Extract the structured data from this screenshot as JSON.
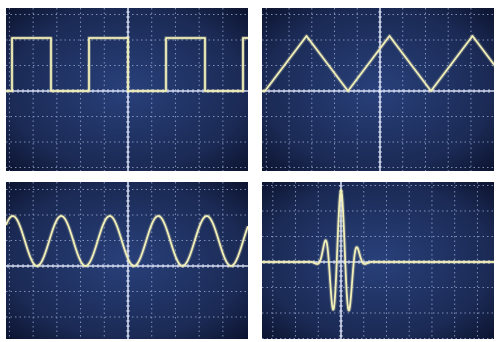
{
  "screen": {
    "background_color": "#1b2a55",
    "screen_edge_color": "#0c1430",
    "grid_color": "#9fb0d8",
    "center_line_color": "#e6ecff",
    "trace_color": "#f2f0b8",
    "frame_color": "#ffffff"
  },
  "panels": [
    {
      "id": "top-left",
      "waveform": "square"
    },
    {
      "id": "top-right",
      "waveform": "triangle"
    },
    {
      "id": "bottom-left",
      "waveform": "sine"
    },
    {
      "id": "bottom-right",
      "waveform": "damped-pulse"
    }
  ]
}
